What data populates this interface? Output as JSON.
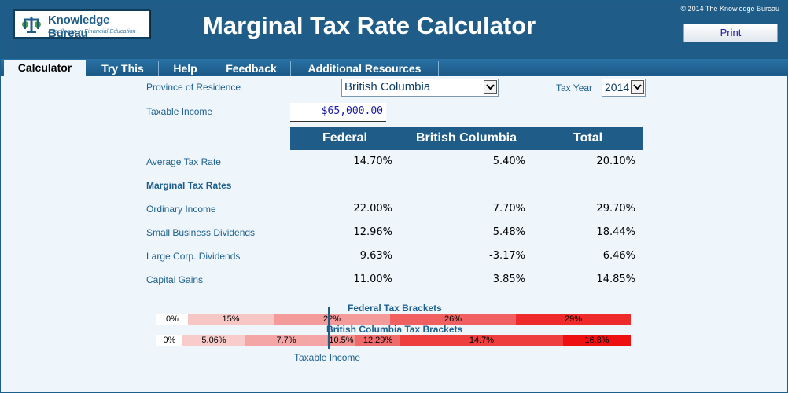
{
  "header": {
    "logo_name": "Knowledge Bureau",
    "logo_tagline": "Excellence in Financial Education",
    "title": "Marginal Tax Rate Calculator",
    "copyright": "© 2014 The Knowledge Bureau",
    "print_label": "Print"
  },
  "tabs": [
    {
      "label": "Calculator",
      "active": true
    },
    {
      "label": "Try This",
      "active": false
    },
    {
      "label": "Help",
      "active": false
    },
    {
      "label": "Feedback",
      "active": false
    },
    {
      "label": "Additional Resources",
      "active": false
    }
  ],
  "form": {
    "province_label": "Province of Residence",
    "province_value": "British Columbia",
    "tax_year_label": "Tax Year",
    "tax_year_value": "2014",
    "income_label": "Taxable Income",
    "income_value": "$65,000.00"
  },
  "table": {
    "headers": [
      "Federal",
      "British Columbia",
      "Total"
    ],
    "average": {
      "label": "Average Tax Rate",
      "values": [
        "14.70%",
        "5.40%",
        "20.10%"
      ]
    },
    "marginal_heading": "Marginal Tax Rates",
    "rows": [
      {
        "label": "Ordinary Income",
        "values": [
          "22.00%",
          "7.70%",
          "29.70%"
        ]
      },
      {
        "label": "Small Business Dividends",
        "values": [
          "12.96%",
          "5.48%",
          "18.44%"
        ]
      },
      {
        "label": "Large Corp. Dividends",
        "values": [
          "9.63%",
          "-3.17%",
          "6.46%"
        ]
      },
      {
        "label": "Capital Gains",
        "values": [
          "11.00%",
          "3.85%",
          "14.85%"
        ]
      }
    ]
  },
  "brackets": {
    "federal_title": "Federal Tax Brackets",
    "provincial_title": "British Columbia Tax Brackets",
    "axis_label": "Taxable Income",
    "federal": [
      {
        "label": "0%",
        "color": "#ffffff"
      },
      {
        "label": "15%",
        "color": "#f9c6c6"
      },
      {
        "label": "22%",
        "color": "#f39a9a"
      },
      {
        "label": "26%",
        "color": "#f06060"
      },
      {
        "label": "29%",
        "color": "#ee2a2a"
      }
    ],
    "provincial": [
      {
        "label": "0%",
        "color": "#ffffff"
      },
      {
        "label": "5.06%",
        "color": "#f9cccc"
      },
      {
        "label": "7.7%",
        "color": "#f4a6a6"
      },
      {
        "label": "10.5%",
        "color": "#f29090"
      },
      {
        "label": "12.29%",
        "color": "#ef6a6a"
      },
      {
        "label": "14.7%",
        "color": "#ee3e3e"
      },
      {
        "label": "16.8%",
        "color": "#ee1010"
      }
    ]
  }
}
